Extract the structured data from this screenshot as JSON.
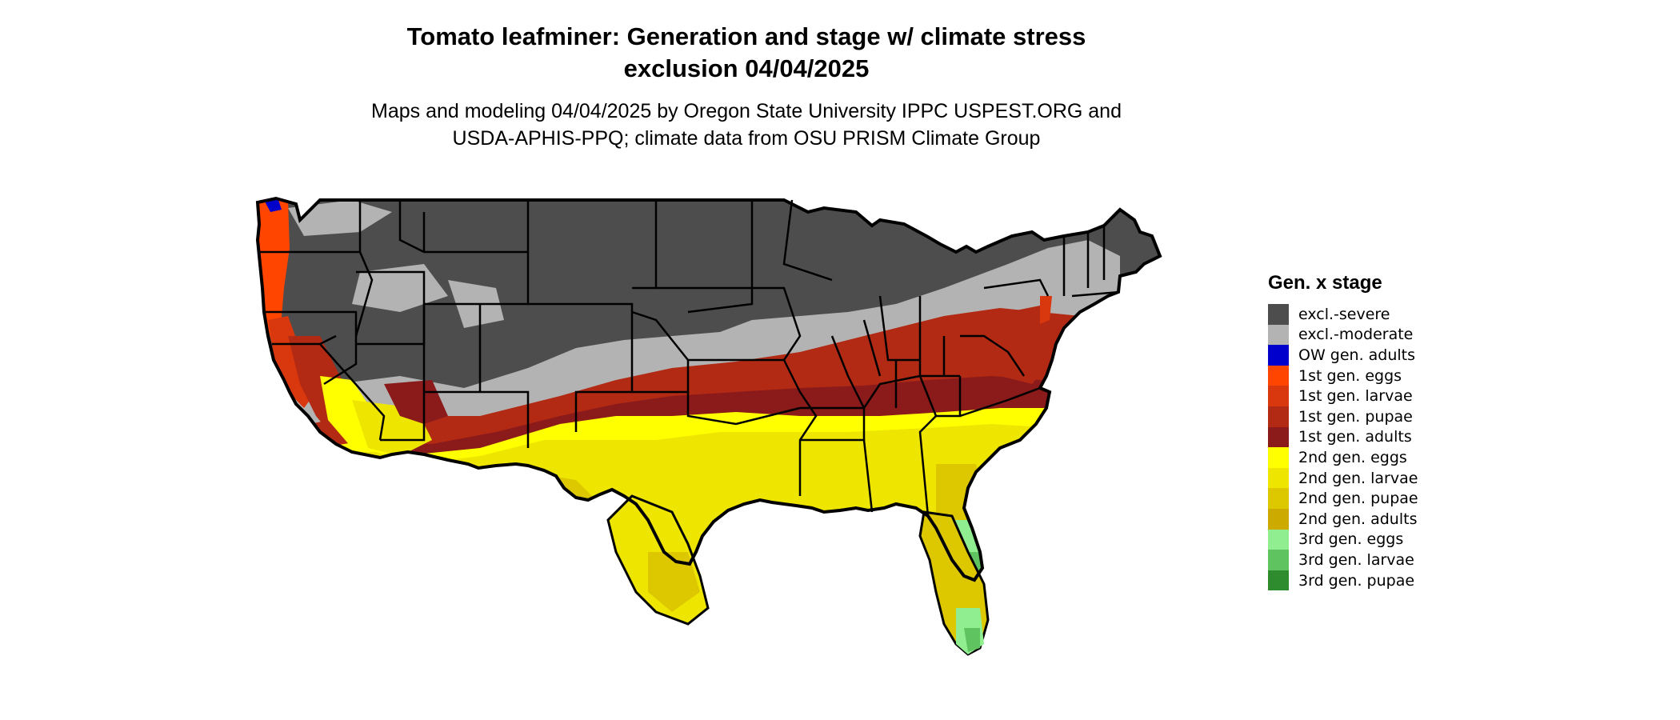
{
  "header": {
    "title_line1": "Tomato leafminer: Generation and stage w/ climate stress",
    "title_line2": "exclusion 04/04/2025",
    "subtitle_line1": "Maps and modeling 04/04/2025 by Oregon State University IPPC USPEST.ORG and",
    "subtitle_line2": "USDA-APHIS-PPQ; climate data from OSU PRISM Climate Group"
  },
  "legend": {
    "title": "Gen. x stage",
    "items": [
      {
        "label": "excl.-severe",
        "color": "#4d4d4d"
      },
      {
        "label": "excl.-moderate",
        "color": "#b3b3b3"
      },
      {
        "label": "OW gen. adults",
        "color": "#0000cd"
      },
      {
        "label": "1st gen. eggs",
        "color": "#ff4500"
      },
      {
        "label": "1st gen. larvae",
        "color": "#d9380f"
      },
      {
        "label": "1st gen. pupae",
        "color": "#b22a14"
      },
      {
        "label": "1st gen. adults",
        "color": "#8b1a1a"
      },
      {
        "label": "2nd gen. eggs",
        "color": "#ffff00"
      },
      {
        "label": "2nd gen. larvae",
        "color": "#eee600"
      },
      {
        "label": "2nd gen. pupae",
        "color": "#ddc800"
      },
      {
        "label": "2nd gen. adults",
        "color": "#ccaa00"
      },
      {
        "label": "3rd gen. eggs",
        "color": "#90ee90"
      },
      {
        "label": "3rd gen. larvae",
        "color": "#5fc35f"
      },
      {
        "label": "3rd gen. pupae",
        "color": "#2e8b2e"
      }
    ]
  }
}
